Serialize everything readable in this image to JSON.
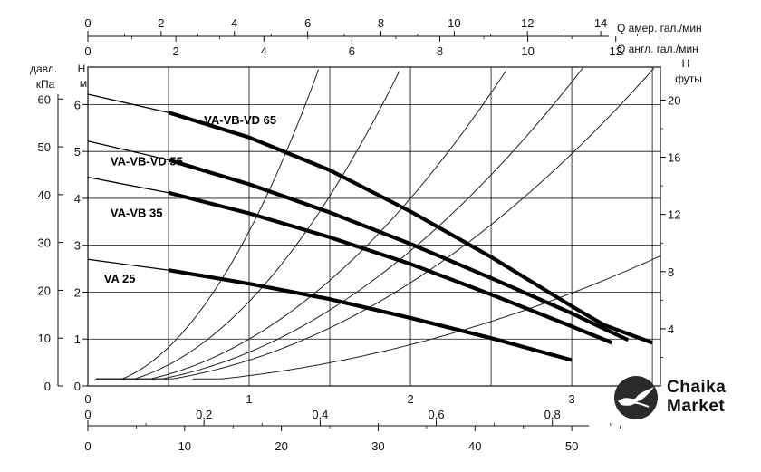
{
  "chart_data": {
    "type": "line",
    "x_axis": {
      "label": "",
      "unit": "",
      "range": [
        0,
        3.55
      ],
      "ticks": [
        "0",
        "1",
        "2",
        "3"
      ]
    },
    "y_axis_h_m": {
      "label": "H",
      "unit": "м",
      "range": [
        0,
        6.8
      ],
      "ticks": [
        "0",
        "1",
        "2",
        "3",
        "4",
        "5",
        "6"
      ]
    },
    "y_axis_kpa": {
      "label": "давл.",
      "unit": "кПа",
      "ticks": [
        "0",
        "10",
        "20",
        "30",
        "40",
        "50",
        "60"
      ]
    },
    "y_axis_ft": {
      "label": "H",
      "unit": "футы",
      "ticks": [
        "4",
        "8",
        "12",
        "16",
        "20"
      ]
    },
    "top_axes": [
      {
        "unit_label": "Q  амер. гал./мин",
        "ticks": [
          "0",
          "2",
          "4",
          "6",
          "8",
          "10",
          "12",
          "14"
        ]
      },
      {
        "unit_label": "Q  англ. гал./мин",
        "ticks": [
          "0",
          "2",
          "4",
          "6",
          "8",
          "10",
          "12"
        ]
      }
    ],
    "bottom_axes": [
      {
        "ticks": [
          "0",
          "0,2",
          "0,4",
          "0,6",
          "0,8"
        ]
      },
      {
        "ticks": [
          "0",
          "10",
          "20",
          "30",
          "40",
          "50"
        ]
      }
    ],
    "grid": true,
    "series": [
      {
        "name": "VA-VB-VD 65",
        "x": [
          0.0,
          0.5,
          1.0,
          1.5,
          2.0,
          2.5,
          3.0,
          3.2,
          3.5
        ],
        "y": [
          6.22,
          5.83,
          5.3,
          4.6,
          3.72,
          2.75,
          1.7,
          1.3,
          0.92
        ]
      },
      {
        "name": "VA-VB-VD 55",
        "x": [
          0.0,
          0.5,
          1.0,
          1.5,
          2.0,
          2.5,
          3.0,
          3.2,
          3.35
        ],
        "y": [
          5.22,
          4.82,
          4.3,
          3.7,
          3.03,
          2.3,
          1.55,
          1.22,
          0.98
        ]
      },
      {
        "name": "VA-VB 35",
        "x": [
          0.0,
          0.5,
          1.0,
          1.5,
          2.0,
          2.5,
          3.0,
          3.25
        ],
        "y": [
          4.45,
          4.12,
          3.68,
          3.17,
          2.6,
          1.95,
          1.27,
          0.92
        ]
      },
      {
        "name": "VA 25",
        "x": [
          0.0,
          0.5,
          1.0,
          1.5,
          2.0,
          2.5,
          3.0
        ],
        "y": [
          2.7,
          2.47,
          2.18,
          1.85,
          1.45,
          1.02,
          0.55
        ]
      }
    ],
    "system_curves": [
      {
        "k": 3.3
      },
      {
        "k": 1.8
      },
      {
        "k": 1.0
      },
      {
        "k": 0.72
      },
      {
        "k": 0.55
      },
      {
        "k": 0.22
      }
    ]
  },
  "logo": {
    "line1": "Chaika",
    "line2": "Market"
  }
}
